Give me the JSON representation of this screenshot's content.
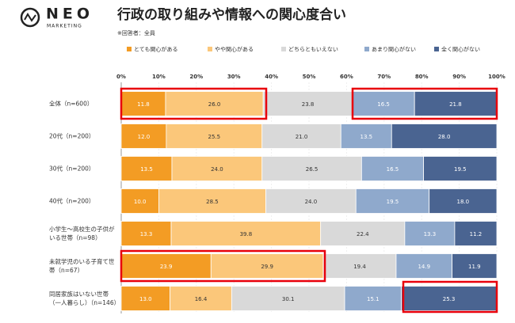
{
  "logo": {
    "name": "NEO",
    "tagline": "MARKETING"
  },
  "chart_data": {
    "type": "stacked-bar-horizontal",
    "title": "行政の取り組みや情報への関心度合い",
    "subtitle": "※回答者：全員",
    "categories": [
      "全体（n=600）",
      "20代（n=200）",
      "30代（n=200）",
      "40代（n=200）",
      "小学生～高校生の子供がいる世帯（n=98）",
      "未就学児のいる子育て世帯（n=67）",
      "同居家族はいない世帯（一人暮らし）（n=146）"
    ],
    "series": [
      {
        "name": "とても関心がある",
        "color": "#f39c24",
        "values": [
          11.8,
          12.0,
          13.5,
          10.0,
          13.3,
          23.9,
          13.0
        ],
        "value_labels": [
          "11.8",
          "12.0",
          "13.5",
          "10.0",
          "13.3",
          "23.9",
          "13.0"
        ]
      },
      {
        "name": "やや関心がある",
        "color": "#fbc77a",
        "values": [
          26.0,
          25.5,
          24.0,
          28.5,
          39.8,
          29.9,
          16.4
        ],
        "value_labels": [
          "26.0",
          "25.5",
          "24.0",
          "28.5",
          "39.8",
          "29.9",
          "16.4"
        ]
      },
      {
        "name": "どちらともいえない",
        "color": "#d9d9d9",
        "values": [
          23.8,
          21.0,
          26.5,
          24.0,
          22.4,
          19.4,
          30.1
        ],
        "value_labels": [
          "23.8",
          "21.0",
          "26.5",
          "24.0",
          "22.4",
          "19.4",
          "30.1"
        ]
      },
      {
        "name": "あまり関心がない",
        "color": "#8fa9cc",
        "values": [
          16.5,
          13.5,
          16.5,
          19.5,
          13.3,
          14.9,
          15.1
        ],
        "value_labels": [
          "16.5",
          "13.5",
          "16.5",
          "19.5",
          "13.3",
          "14.9",
          "15.1"
        ]
      },
      {
        "name": "全く関心がない",
        "color": "#4a6491",
        "values": [
          21.8,
          28.0,
          19.5,
          18.0,
          11.2,
          11.9,
          25.3
        ],
        "value_labels": [
          "21.8",
          "28.0",
          "19.5",
          "18.0",
          "11.2",
          "11.9",
          "25.3"
        ]
      }
    ],
    "xlim": [
      0,
      100
    ],
    "xticks": [
      {
        "value": 0,
        "label": "0%"
      },
      {
        "value": 10,
        "label": "10%"
      },
      {
        "value": 20,
        "label": "20%"
      },
      {
        "value": 30,
        "label": "30%"
      },
      {
        "value": 40,
        "label": "40%"
      },
      {
        "value": 50,
        "label": "50%"
      },
      {
        "value": 60,
        "label": "60%"
      },
      {
        "value": 70,
        "label": "70%"
      },
      {
        "value": 80,
        "label": "80%"
      },
      {
        "value": 90,
        "label": "90%"
      },
      {
        "value": 100,
        "label": "100%"
      }
    ],
    "grid": true
  }
}
